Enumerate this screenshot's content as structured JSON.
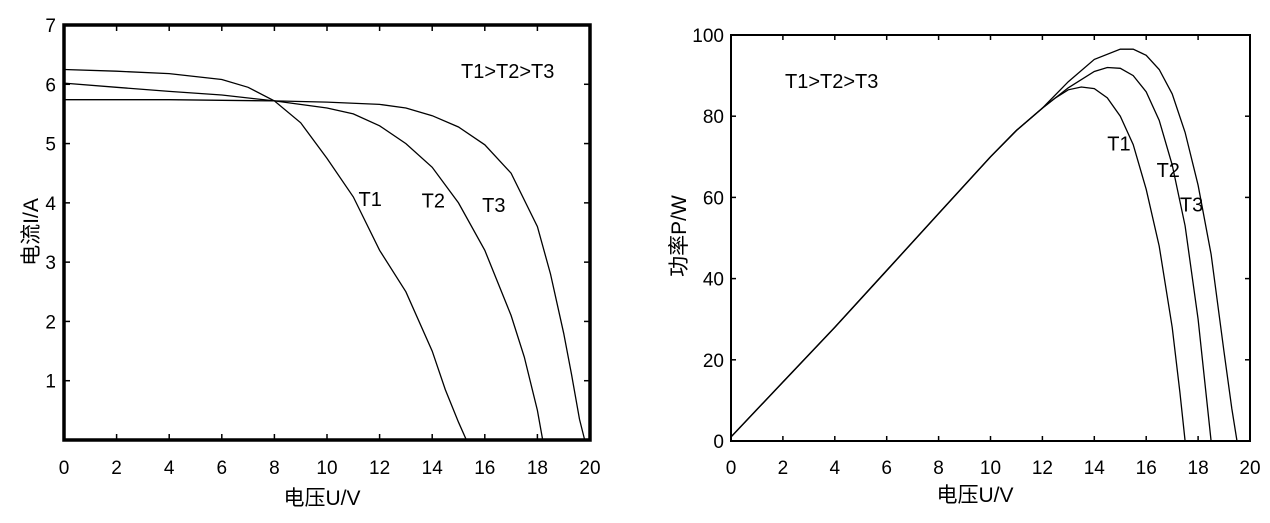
{
  "chart_data": [
    {
      "type": "line",
      "title": "",
      "xlabel": "电压U/V",
      "ylabel": "电流I/A",
      "xlim": [
        0,
        20
      ],
      "ylim": [
        0,
        7
      ],
      "xticks": [
        "0",
        "2",
        "4",
        "6",
        "8",
        "10",
        "12",
        "14",
        "16",
        "18",
        "20"
      ],
      "yticks": [
        "1",
        "2",
        "3",
        "4",
        "5",
        "6",
        "7"
      ],
      "annotation": "T1>T2>T3",
      "grid": false,
      "series": [
        {
          "name": "T1",
          "x": [
            0,
            2,
            4,
            6,
            7,
            8,
            9,
            10,
            11,
            12,
            13,
            14,
            14.5,
            15,
            15.3
          ],
          "y": [
            6.25,
            6.22,
            6.18,
            6.08,
            5.95,
            5.72,
            5.35,
            4.75,
            4.1,
            3.2,
            2.5,
            1.5,
            0.85,
            0.3,
            0.0
          ]
        },
        {
          "name": "T2",
          "x": [
            0,
            2,
            4,
            6,
            8,
            10,
            11,
            12,
            13,
            14,
            15,
            16,
            17,
            17.5,
            18,
            18.2
          ],
          "y": [
            6.02,
            5.95,
            5.88,
            5.82,
            5.72,
            5.6,
            5.5,
            5.3,
            5.0,
            4.6,
            4.0,
            3.2,
            2.1,
            1.4,
            0.5,
            0.0
          ]
        },
        {
          "name": "T3",
          "x": [
            0,
            2,
            4,
            6,
            8,
            10,
            12,
            13,
            14,
            15,
            16,
            17,
            18,
            18.5,
            19,
            19.3,
            19.6,
            19.8
          ],
          "y": [
            5.74,
            5.74,
            5.74,
            5.73,
            5.72,
            5.7,
            5.66,
            5.6,
            5.47,
            5.28,
            4.98,
            4.5,
            3.6,
            2.8,
            1.8,
            1.1,
            0.35,
            0.0
          ]
        }
      ],
      "curve_labels": [
        {
          "text": "T1",
          "x": 11.2,
          "y": 3.95
        },
        {
          "text": "T2",
          "x": 13.6,
          "y": 3.92
        },
        {
          "text": "T3",
          "x": 15.9,
          "y": 3.85
        }
      ]
    },
    {
      "type": "line",
      "title": "",
      "xlabel": "电压U/V",
      "ylabel": "功率P/W",
      "xlim": [
        0,
        20
      ],
      "ylim": [
        0,
        100
      ],
      "xticks": [
        "0",
        "2",
        "4",
        "6",
        "8",
        "10",
        "12",
        "14",
        "16",
        "18",
        "20"
      ],
      "yticks": [
        "0",
        "20",
        "40",
        "60",
        "80",
        "100"
      ],
      "annotation": "T1>T2>T3",
      "grid": false,
      "series": [
        {
          "name": "T1",
          "x": [
            0,
            2,
            4,
            6,
            8,
            10,
            11,
            12,
            12.5,
            13,
            13.5,
            14,
            14.5,
            15,
            15.5,
            16,
            16.5,
            17,
            17.3,
            17.5
          ],
          "y": [
            1,
            14.5,
            28,
            42,
            56,
            70,
            76.5,
            82,
            84.5,
            86.5,
            87.2,
            86.8,
            84.5,
            80,
            73,
            62,
            48,
            28,
            12,
            0
          ]
        },
        {
          "name": "T2",
          "x": [
            0,
            2,
            4,
            6,
            8,
            10,
            11,
            12,
            13,
            14,
            14.5,
            15,
            15.5,
            16,
            16.5,
            17,
            17.5,
            18,
            18.3,
            18.5
          ],
          "y": [
            1,
            14.5,
            28,
            42,
            56,
            70,
            76.5,
            82,
            87,
            91,
            92,
            91.8,
            90,
            86,
            79,
            68,
            53,
            30,
            12,
            0
          ]
        },
        {
          "name": "T3",
          "x": [
            0,
            2,
            4,
            6,
            8,
            10,
            11,
            12,
            13,
            14,
            15,
            15.5,
            16,
            16.5,
            17,
            17.5,
            18,
            18.5,
            19,
            19.3,
            19.5
          ],
          "y": [
            1,
            14.5,
            28,
            42,
            56,
            70,
            76.5,
            82,
            88.5,
            94,
            96.5,
            96.5,
            95,
            91.5,
            85.5,
            76,
            63,
            46,
            22,
            8,
            0
          ]
        }
      ],
      "curve_labels": [
        {
          "text": "T1",
          "x": 14.5,
          "y": 71.5
        },
        {
          "text": "T2",
          "x": 16.4,
          "y": 65
        },
        {
          "text": "T3",
          "x": 17.3,
          "y": 56.5
        }
      ]
    }
  ]
}
